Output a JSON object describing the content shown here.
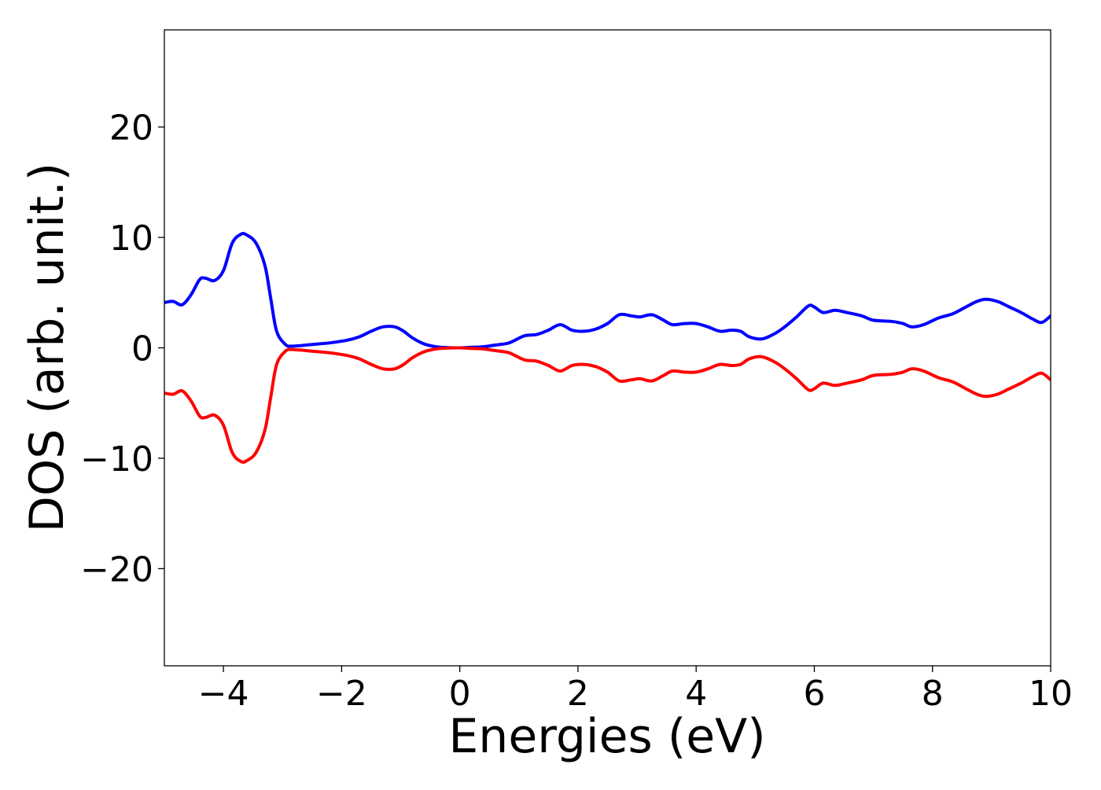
{
  "chart_data": {
    "type": "line",
    "title": "",
    "xlabel": "Energies (eV)",
    "ylabel": "DOS (arb. unit.)",
    "xlim": [
      -5,
      10
    ],
    "ylim": [
      -28.8,
      28.8
    ],
    "xticks": [
      -4,
      -2,
      0,
      2,
      4,
      6,
      8,
      10
    ],
    "yticks": [
      -20,
      -10,
      0,
      10,
      20
    ],
    "xtick_labels": [
      "−4",
      "−2",
      "0",
      "2",
      "4",
      "6",
      "8",
      "10"
    ],
    "ytick_labels": [
      "−20",
      "−10",
      "0",
      "10",
      "20"
    ],
    "grid": false,
    "legend": "none",
    "series": [
      {
        "color": "#0000ff",
        "x": [
          -5.0,
          -4.85,
          -4.7,
          -4.55,
          -4.4,
          -4.3,
          -4.15,
          -4.0,
          -3.85,
          -3.7,
          -3.6,
          -3.45,
          -3.3,
          -3.2,
          -3.1,
          -2.95,
          -2.85,
          -2.7,
          -2.5,
          -2.2,
          -1.9,
          -1.7,
          -1.5,
          -1.3,
          -1.1,
          -0.95,
          -0.8,
          -0.6,
          -0.4,
          -0.2,
          0.0,
          0.2,
          0.4,
          0.6,
          0.8,
          0.9,
          1.1,
          1.3,
          1.5,
          1.7,
          1.9,
          2.1,
          2.3,
          2.5,
          2.7,
          2.9,
          3.05,
          3.25,
          3.45,
          3.6,
          3.8,
          4.0,
          4.2,
          4.4,
          4.6,
          4.75,
          4.9,
          5.1,
          5.3,
          5.5,
          5.7,
          5.9,
          6.0,
          6.15,
          6.35,
          6.55,
          6.8,
          7.0,
          7.3,
          7.5,
          7.65,
          7.85,
          8.1,
          8.35,
          8.6,
          8.75,
          8.9,
          9.1,
          9.3,
          9.5,
          9.7,
          9.85,
          10.0
        ],
        "y": [
          4.1,
          4.2,
          3.9,
          4.8,
          6.2,
          6.3,
          6.1,
          7.0,
          9.5,
          10.3,
          10.2,
          9.5,
          7.5,
          4.5,
          1.5,
          0.3,
          0.15,
          0.2,
          0.3,
          0.45,
          0.7,
          1.0,
          1.5,
          1.9,
          1.9,
          1.5,
          0.9,
          0.35,
          0.1,
          0.02,
          0.0,
          0.05,
          0.1,
          0.25,
          0.4,
          0.6,
          1.1,
          1.2,
          1.6,
          2.1,
          1.6,
          1.5,
          1.7,
          2.2,
          3.0,
          2.9,
          2.8,
          3.0,
          2.5,
          2.1,
          2.2,
          2.2,
          1.9,
          1.5,
          1.6,
          1.5,
          1.0,
          0.8,
          1.2,
          1.9,
          2.8,
          3.8,
          3.7,
          3.2,
          3.4,
          3.2,
          2.9,
          2.5,
          2.4,
          2.2,
          1.9,
          2.1,
          2.7,
          3.1,
          3.8,
          4.2,
          4.4,
          4.2,
          3.7,
          3.2,
          2.6,
          2.3,
          2.9
        ]
      },
      {
        "color": "#ff0000",
        "x": [
          -5.0,
          -4.85,
          -4.7,
          -4.55,
          -4.4,
          -4.3,
          -4.15,
          -4.0,
          -3.85,
          -3.7,
          -3.6,
          -3.45,
          -3.3,
          -3.2,
          -3.1,
          -2.95,
          -2.85,
          -2.7,
          -2.5,
          -2.2,
          -1.9,
          -1.7,
          -1.5,
          -1.3,
          -1.1,
          -0.95,
          -0.8,
          -0.6,
          -0.4,
          -0.2,
          0.0,
          0.2,
          0.4,
          0.6,
          0.8,
          0.9,
          1.1,
          1.3,
          1.5,
          1.7,
          1.9,
          2.1,
          2.3,
          2.5,
          2.7,
          2.9,
          3.05,
          3.25,
          3.45,
          3.6,
          3.8,
          4.0,
          4.2,
          4.4,
          4.6,
          4.75,
          4.9,
          5.1,
          5.3,
          5.5,
          5.7,
          5.9,
          6.0,
          6.15,
          6.35,
          6.55,
          6.8,
          7.0,
          7.3,
          7.5,
          7.65,
          7.85,
          8.1,
          8.35,
          8.6,
          8.75,
          8.9,
          9.1,
          9.3,
          9.5,
          9.7,
          9.85,
          10.0
        ],
        "y": [
          -4.1,
          -4.2,
          -3.9,
          -4.8,
          -6.2,
          -6.3,
          -6.1,
          -7.0,
          -9.5,
          -10.3,
          -10.2,
          -9.5,
          -7.5,
          -4.5,
          -1.5,
          -0.3,
          -0.15,
          -0.2,
          -0.3,
          -0.45,
          -0.7,
          -1.0,
          -1.5,
          -1.9,
          -1.9,
          -1.5,
          -0.9,
          -0.35,
          -0.1,
          -0.02,
          -0.0,
          -0.05,
          -0.1,
          -0.25,
          -0.4,
          -0.6,
          -1.1,
          -1.2,
          -1.6,
          -2.1,
          -1.6,
          -1.5,
          -1.7,
          -2.2,
          -3.0,
          -2.9,
          -2.8,
          -3.0,
          -2.5,
          -2.1,
          -2.2,
          -2.2,
          -1.9,
          -1.5,
          -1.6,
          -1.5,
          -1.0,
          -0.8,
          -1.2,
          -1.9,
          -2.8,
          -3.8,
          -3.7,
          -3.2,
          -3.4,
          -3.2,
          -2.9,
          -2.5,
          -2.4,
          -2.2,
          -1.9,
          -2.1,
          -2.7,
          -3.1,
          -3.8,
          -4.2,
          -4.4,
          -4.2,
          -3.7,
          -3.2,
          -2.6,
          -2.3,
          -2.9
        ]
      }
    ]
  }
}
